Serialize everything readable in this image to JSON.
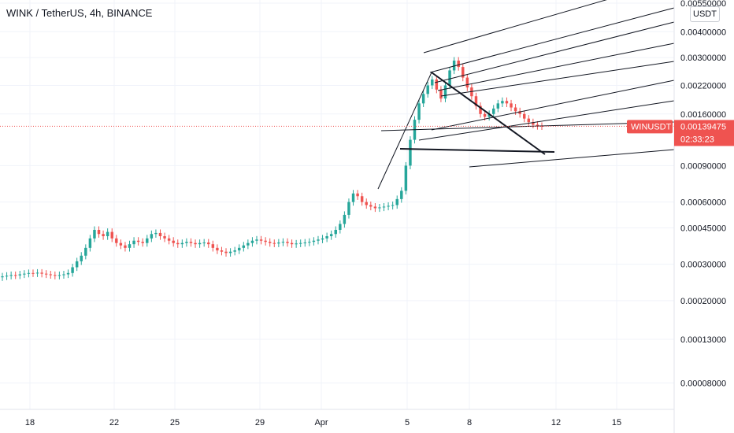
{
  "header": {
    "title": "WINK / TetherUS, 4h, BINANCE",
    "currency": "USDT"
  },
  "price_tag": {
    "symbol": "WINUSDT",
    "price": "0.00139475",
    "countdown": "02:33:23",
    "color": "#ef5350"
  },
  "colors": {
    "up": "#26a69a",
    "down": "#ef5350",
    "drawing": "#131722",
    "grid": "#f0f3fa"
  },
  "chart_data": {
    "type": "candlestick",
    "scale": "log",
    "ylim": [
      6.5e-05,
      0.0055
    ],
    "y_ticks": [
      "0.00550000",
      "0.00400000",
      "0.00300000",
      "0.00220000",
      "0.00160000",
      "0.00090000",
      "0.00060000",
      "0.00045000",
      "0.00030000",
      "0.00020000",
      "0.00013000",
      "0.00008000"
    ],
    "x_ticks": [
      "18",
      "22",
      "25",
      "29",
      "Apr",
      "5",
      "8",
      "12",
      "15"
    ],
    "last_price": 0.00139475,
    "series": [
      {
        "comment": "approximate 4h close values read from chart",
        "values": [
          0.000262,
          0.000264,
          0.000266,
          0.000265,
          0.000268,
          0.00027,
          0.000272,
          0.000271,
          0.000273,
          0.00027,
          0.000268,
          0.000266,
          0.000264,
          0.000266,
          0.000268,
          0.000272,
          0.00029,
          0.00031,
          0.00033,
          0.00036,
          0.0004,
          0.00044,
          0.00042,
          0.00041,
          0.00043,
          0.0004,
          0.00038,
          0.00037,
          0.00036,
          0.000375,
          0.00039,
          0.000385,
          0.00038,
          0.0004,
          0.00042,
          0.000425,
          0.00041,
          0.0004,
          0.00039,
          0.00038,
          0.000375,
          0.00038,
          0.000385,
          0.00038,
          0.000375,
          0.00038,
          0.000382,
          0.000375,
          0.00036,
          0.00035,
          0.000345,
          0.00034,
          0.000345,
          0.00035,
          0.00036,
          0.00037,
          0.00038,
          0.00039,
          0.000395,
          0.00039,
          0.000385,
          0.00038,
          0.000378,
          0.000382,
          0.000385,
          0.00038,
          0.000375,
          0.000378,
          0.00038,
          0.000382,
          0.000385,
          0.00039,
          0.000395,
          0.0004,
          0.00041,
          0.00042,
          0.00044,
          0.00047,
          0.00052,
          0.0006,
          0.00066,
          0.00064,
          0.0006,
          0.00058,
          0.00057,
          0.00056,
          0.000565,
          0.00057,
          0.000575,
          0.00058,
          0.00062,
          0.00068,
          0.0009,
          0.0012,
          0.0015,
          0.0018,
          0.002,
          0.0022,
          0.00235,
          0.0021,
          0.0019,
          0.0022,
          0.0026,
          0.0029,
          0.0027,
          0.0024,
          0.00215,
          0.00195,
          0.00175,
          0.0016,
          0.00155,
          0.0016,
          0.0017,
          0.0018,
          0.00185,
          0.0018,
          0.00172,
          0.00165,
          0.0016,
          0.00152,
          0.00146,
          0.00142,
          0.0014,
          0.001395
        ]
      }
    ]
  }
}
